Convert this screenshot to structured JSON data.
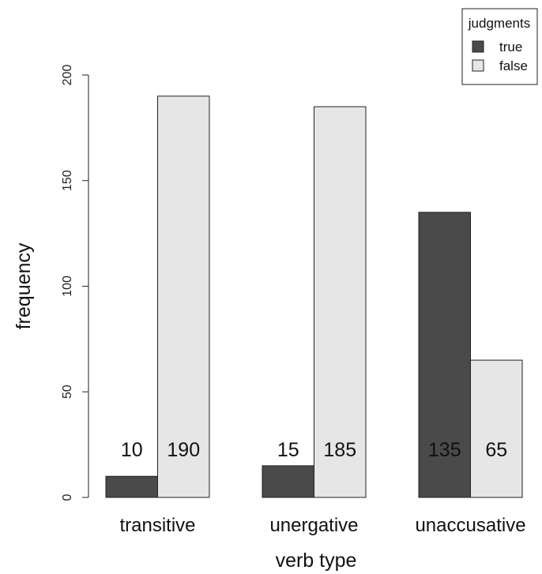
{
  "chart_data": {
    "type": "bar",
    "categories": [
      "transitive",
      "unergative",
      "unaccusative"
    ],
    "series": [
      {
        "name": "true",
        "values": [
          10,
          15,
          135
        ],
        "color": "#4a4a4a"
      },
      {
        "name": "false",
        "values": [
          190,
          185,
          65
        ],
        "color": "#e6e6e6"
      }
    ],
    "data_labels": [
      [
        "10",
        "190"
      ],
      [
        "15",
        "185"
      ],
      [
        "135",
        "65"
      ]
    ],
    "xlabel": "verb type",
    "ylabel": "frequency",
    "ylim": [
      0,
      200
    ],
    "yticks": [
      0,
      50,
      100,
      150,
      200
    ],
    "legend": {
      "title": "judgments",
      "position": "top-right"
    },
    "grid": false
  }
}
